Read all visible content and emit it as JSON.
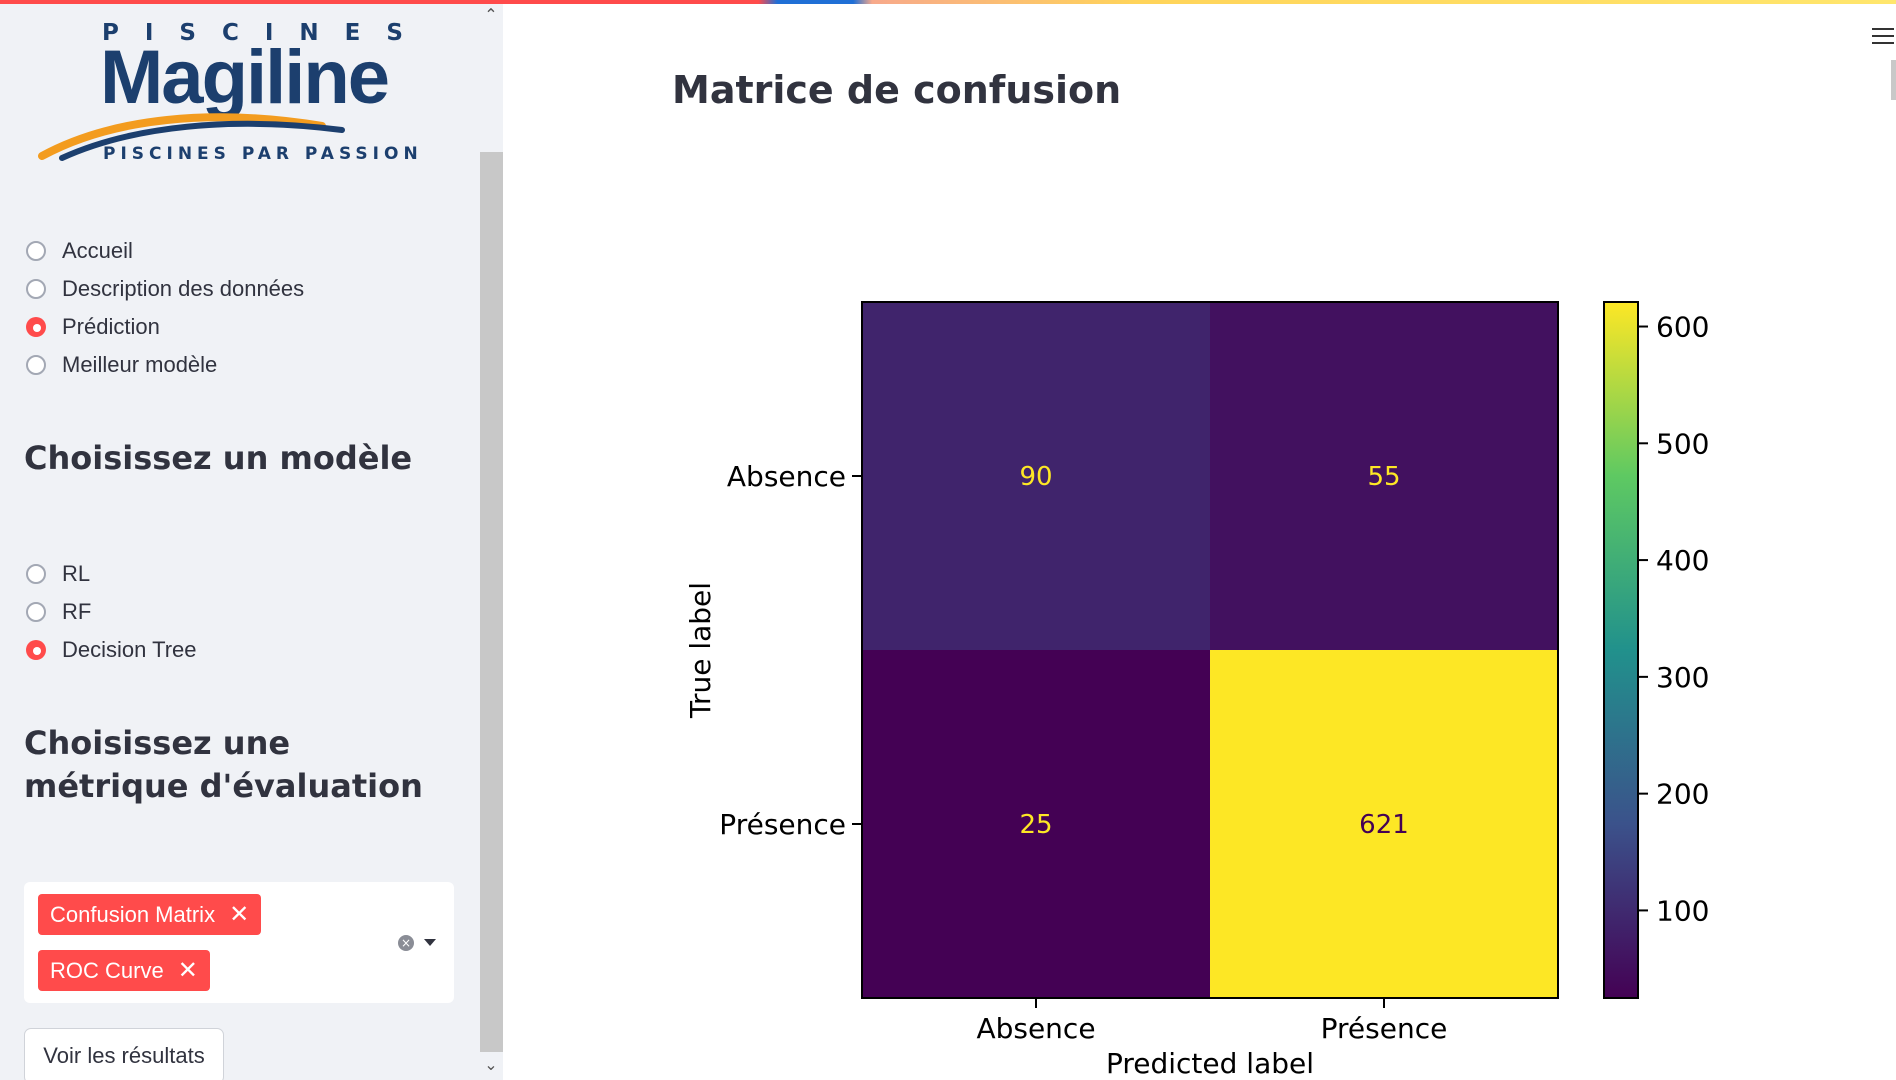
{
  "sidebar": {
    "logo": {
      "top_text": "PISCINES",
      "brand": "Magiline",
      "tagline": "PISCINES PAR PASSION"
    },
    "nav": {
      "items": [
        {
          "label": "Accueil",
          "checked": false
        },
        {
          "label": "Description des données",
          "checked": false
        },
        {
          "label": "Prédiction",
          "checked": true
        },
        {
          "label": "Meilleur modèle",
          "checked": false
        }
      ]
    },
    "model_heading": "Choisissez un modèle",
    "models": {
      "items": [
        {
          "label": "RL",
          "checked": false
        },
        {
          "label": "RF",
          "checked": false
        },
        {
          "label": "Decision Tree",
          "checked": true
        }
      ]
    },
    "metric_heading": "Choisissez une métrique d'évaluation",
    "metrics": {
      "selected": [
        "Confusion Matrix",
        "ROC Curve"
      ],
      "remove_glyph": "✕"
    },
    "submit_label": "Voir les résultats"
  },
  "main": {
    "title": "Matrice de confusion"
  },
  "colors": {
    "accent": "#ff4b4b",
    "sidebar_bg": "#f0f2f6",
    "text": "#31333f"
  },
  "chart_data": {
    "type": "heatmap",
    "title": "",
    "xlabel": "Predicted label",
    "ylabel": "True label",
    "x_categories": [
      "Absence",
      "Présence"
    ],
    "y_categories": [
      "Absence",
      "Présence"
    ],
    "values": [
      [
        90,
        55
      ],
      [
        25,
        621
      ]
    ],
    "colormap": "viridis",
    "colorbar": {
      "min": 25,
      "max": 621,
      "ticks": [
        100,
        200,
        300,
        400,
        500,
        600
      ]
    },
    "cell_text_colors": {
      "on_dark": "#fde725",
      "on_light": "#440154"
    }
  }
}
